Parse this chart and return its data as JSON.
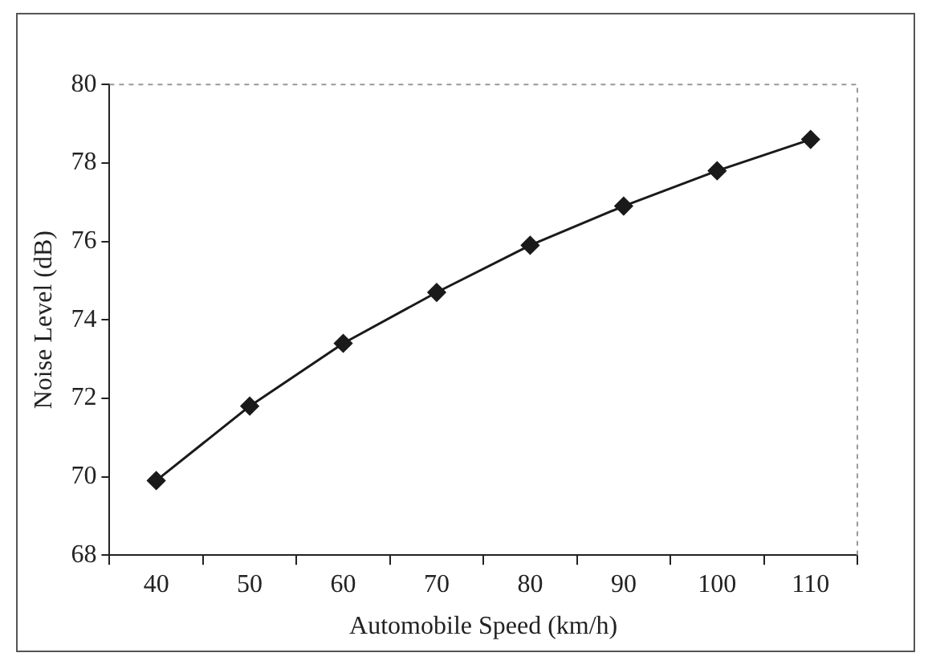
{
  "chart_data": {
    "type": "line",
    "xlabel": "Automobile Speed (km/h)",
    "ylabel": "Noise Level (dB)",
    "categories": [
      "40",
      "50",
      "60",
      "70",
      "80",
      "90",
      "100",
      "110"
    ],
    "series": [
      {
        "color": "#1a1a1a",
        "values": [
          69.9,
          71.8,
          73.4,
          74.7,
          75.9,
          76.9,
          77.8,
          78.6
        ]
      }
    ],
    "ylim": [
      68,
      80
    ],
    "yticks": [
      68,
      70,
      72,
      74,
      76,
      78,
      80
    ],
    "grid": false,
    "legend": false,
    "marker": "diamond",
    "line_style": "solid"
  }
}
